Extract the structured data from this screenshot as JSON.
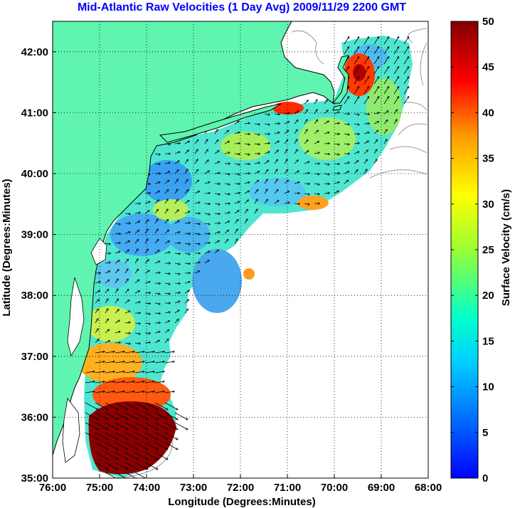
{
  "title": "Mid-Atlantic Raw Velocities (1 Day Avg) 2009/11/29 2200 GMT",
  "x_axis": {
    "label": "Longitude (Degrees:Minutes)",
    "ticks": [
      "76:00",
      "75:00",
      "74:00",
      "73:00",
      "72:00",
      "71:00",
      "70:00",
      "69:00",
      "68:00"
    ]
  },
  "y_axis": {
    "label": "Latitude (Degrees:Minutes)",
    "ticks": [
      "35:00",
      "36:00",
      "37:00",
      "38:00",
      "39:00",
      "40:00",
      "41:00",
      "42:00"
    ]
  },
  "colorbar": {
    "label": "Surface Velocity (cm/s)",
    "ticks": [
      "0",
      "5",
      "10",
      "15",
      "20",
      "25",
      "30",
      "35",
      "40",
      "45",
      "50"
    ],
    "range": [
      0,
      50
    ],
    "colormap": "jet"
  },
  "colors": {
    "land": "#5ff5b0",
    "coastline": "#000000",
    "bathymetry": "#9a9a9a",
    "grid": "#000000",
    "title": "#0000ff"
  },
  "map_extent": {
    "lon": [
      -76,
      -68
    ],
    "lat": [
      35,
      42.5
    ]
  },
  "grid": "dotted"
}
